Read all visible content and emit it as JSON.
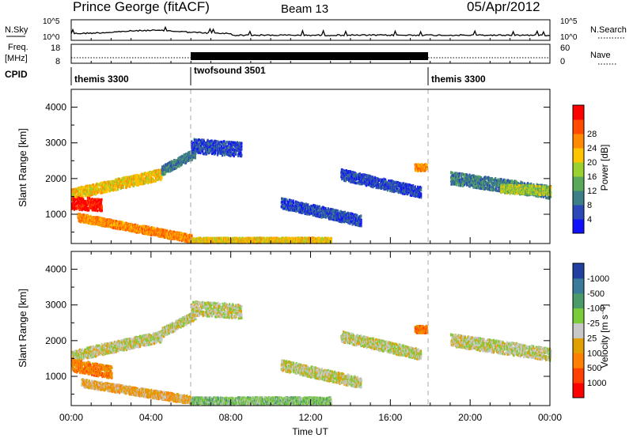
{
  "header": {
    "station": "Prince George (fitACF)",
    "beam": "Beam 13",
    "date": "05/Apr/2012"
  },
  "top_panels": {
    "nsky_label": "N.Sky",
    "nsky_ticks": [
      "10^5",
      "10^0"
    ],
    "nsearch_label": "N.Search",
    "freq_label_1": "Freq.",
    "freq_label_2": "[MHz]",
    "freq_ticks": [
      "18",
      "8"
    ],
    "nave_ticks": [
      "60",
      "0"
    ],
    "nave_label": "Nave",
    "cpid_label": "CPID",
    "cpid_segments": [
      {
        "name": "themis 3300",
        "start_hour": 0
      },
      {
        "name": "twofsound 3501",
        "start_hour": 6
      },
      {
        "name": "themis 3300",
        "start_hour": 18
      }
    ]
  },
  "colors": {
    "power_scale": [
      "#1010ff",
      "#2c48b8",
      "#3c7f86",
      "#5aa85a",
      "#9ad030",
      "#ffc400",
      "#ff8a00",
      "#ff4a00",
      "#ff0000"
    ],
    "velocity_scale": [
      "#2040a0",
      "#3a7a9a",
      "#4a9a6a",
      "#7acc3a",
      "#c8c8c8",
      "#e0a000",
      "#ff8000",
      "#ff4000",
      "#ff0000"
    ],
    "ground_scatter": "#c8c8c8"
  },
  "chart_data": [
    {
      "type": "heatmap",
      "panel": "power",
      "ylabel": "Slant Range [km]",
      "x_ticks": [
        "00:00",
        "04:00",
        "08:00",
        "12:00",
        "16:00",
        "20:00",
        "00:00"
      ],
      "y_ticks": [
        1000,
        2000,
        3000,
        4000
      ],
      "ylim": [
        180,
        4500
      ],
      "xlim_hours": [
        0,
        24
      ],
      "colorbar_label": "Power [dB]",
      "colorbar_ticks": [
        4,
        8,
        12,
        16,
        20,
        24,
        28
      ],
      "bands": [
        {
          "t0": 0.0,
          "t1": 4.5,
          "r_mid0": 1550,
          "r_mid1": 2100,
          "width": 300,
          "color_index": 5
        },
        {
          "t0": 0.0,
          "t1": 1.5,
          "r_mid0": 1300,
          "r_mid1": 1250,
          "width": 350,
          "color_index": 8
        },
        {
          "t0": 0.3,
          "t1": 6.0,
          "r_mid0": 900,
          "r_mid1": 300,
          "width": 220,
          "color_index": 6
        },
        {
          "t0": 4.5,
          "t1": 6.2,
          "r_mid0": 2200,
          "r_mid1": 2700,
          "width": 260,
          "color_index": 2
        },
        {
          "t0": 6.0,
          "t1": 13.0,
          "r_mid0": 260,
          "r_mid1": 260,
          "width": 140,
          "color_index": 5
        },
        {
          "t0": 6.0,
          "t1": 8.5,
          "r_mid0": 2900,
          "r_mid1": 2800,
          "width": 400,
          "color_index": 1
        },
        {
          "t0": 10.5,
          "t1": 14.5,
          "r_mid0": 1300,
          "r_mid1": 800,
          "width": 300,
          "color_index": 1
        },
        {
          "t0": 13.5,
          "t1": 17.5,
          "r_mid0": 2100,
          "r_mid1": 1600,
          "width": 300,
          "color_index": 1
        },
        {
          "t0": 17.2,
          "t1": 17.8,
          "r_mid0": 2300,
          "r_mid1": 2300,
          "width": 200,
          "color_index": 6
        },
        {
          "t0": 19.0,
          "t1": 24.0,
          "r_mid0": 2000,
          "r_mid1": 1600,
          "width": 350,
          "color_index": 2
        },
        {
          "t0": 21.5,
          "t1": 24.0,
          "r_mid0": 1700,
          "r_mid1": 1650,
          "width": 250,
          "color_index": 4
        }
      ]
    },
    {
      "type": "heatmap",
      "panel": "velocity",
      "ylabel": "Slant Range [km]",
      "xlabel": "Time UT",
      "x_ticks": [
        "00:00",
        "04:00",
        "08:00",
        "12:00",
        "16:00",
        "20:00",
        "00:00"
      ],
      "y_ticks": [
        1000,
        2000,
        3000,
        4000
      ],
      "ylim": [
        180,
        4500
      ],
      "xlim_hours": [
        0,
        24
      ],
      "colorbar_label": "Velocity [m s⁻¹]",
      "colorbar_ticks": [
        1000,
        500,
        100,
        25,
        -25,
        -100,
        -500,
        -1000
      ],
      "bands": [
        {
          "t0": 0.0,
          "t1": 4.5,
          "r_mid0": 1550,
          "r_mid1": 2100,
          "width": 300,
          "color_index": 4
        },
        {
          "t0": 0.0,
          "t1": 2.0,
          "r_mid0": 1300,
          "r_mid1": 1100,
          "width": 350,
          "color_index": 6
        },
        {
          "t0": 0.5,
          "t1": 6.0,
          "r_mid0": 800,
          "r_mid1": 320,
          "width": 220,
          "color_index": 5
        },
        {
          "t0": 4.5,
          "t1": 6.2,
          "r_mid0": 2200,
          "r_mid1": 2700,
          "width": 260,
          "color_index": 4
        },
        {
          "t0": 6.0,
          "t1": 13.0,
          "r_mid0": 300,
          "r_mid1": 300,
          "width": 200,
          "color_index": 3
        },
        {
          "t0": 6.0,
          "t1": 8.5,
          "r_mid0": 2900,
          "r_mid1": 2800,
          "width": 400,
          "color_index": 4
        },
        {
          "t0": 10.5,
          "t1": 14.5,
          "r_mid0": 1300,
          "r_mid1": 800,
          "width": 300,
          "color_index": 4
        },
        {
          "t0": 13.5,
          "t1": 17.5,
          "r_mid0": 2100,
          "r_mid1": 1600,
          "width": 300,
          "color_index": 4
        },
        {
          "t0": 17.2,
          "t1": 17.8,
          "r_mid0": 2300,
          "r_mid1": 2300,
          "width": 200,
          "color_index": 6
        },
        {
          "t0": 19.0,
          "t1": 24.0,
          "r_mid0": 2000,
          "r_mid1": 1600,
          "width": 350,
          "color_index": 4
        }
      ]
    }
  ]
}
